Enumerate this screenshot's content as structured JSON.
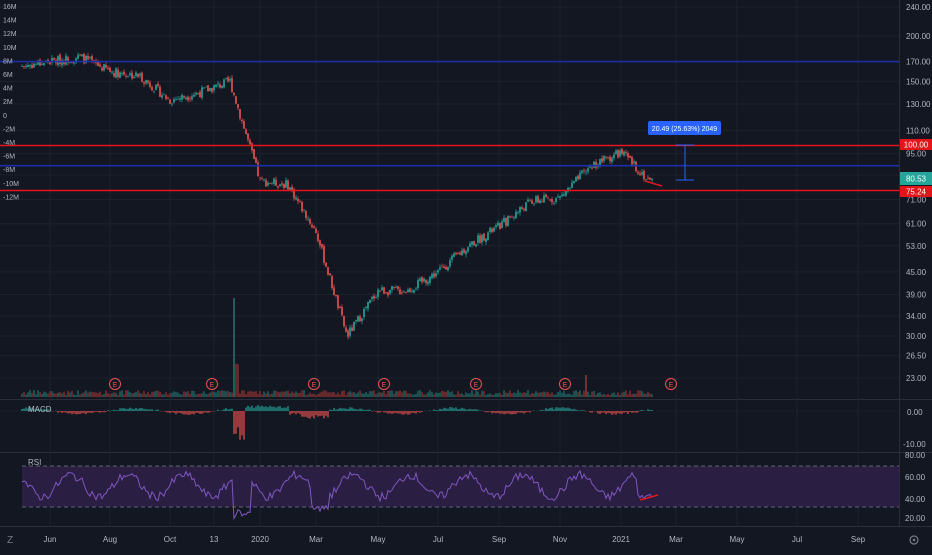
{
  "colors": {
    "background": "#131722",
    "grid": "#1e222d",
    "text": "#b2b5be",
    "up": "#26a69a",
    "down": "#ef5350",
    "horizontal_blue": "#1c2fa8",
    "horizontal_red": "#e3151a",
    "macd_line": "#2962ff",
    "macd_signal": "#ff6d00",
    "rsi_line": "#7e57c2",
    "rsi_band": "#2a1e42",
    "price_label_green": "#26a69a",
    "price_label_red": "#e3151a",
    "measure_label": "#2962ff"
  },
  "left_axis": {
    "labels": [
      "16M",
      "14M",
      "12M",
      "10M",
      "8M",
      "6M",
      "4M",
      "2M",
      "0",
      "-2M",
      "-4M",
      "-6M",
      "-8M",
      "-10M",
      "-12M"
    ]
  },
  "price_axis": {
    "labels": [
      "240.00",
      "200.00",
      "170.00",
      "150.00",
      "130.00",
      "110.00",
      "95.00",
      "83.00",
      "71.00",
      "61.00",
      "53.00",
      "45.00",
      "39.00",
      "34.00",
      "30.00",
      "26.50",
      "23.00"
    ],
    "level_labels": [
      {
        "text": "100.00",
        "style": "red"
      },
      {
        "text": "80.53",
        "style": "green"
      },
      {
        "text": "75.24",
        "style": "red"
      }
    ]
  },
  "macd_pane": {
    "title": "MACD",
    "labels": [
      "0.00",
      "-10.00"
    ]
  },
  "rsi_pane": {
    "title": "RSI",
    "labels": [
      "80.00",
      "60.00",
      "40.00",
      "20.00"
    ]
  },
  "time_axis": {
    "labels": [
      "Jun",
      "Aug",
      "Oct",
      "13",
      "2020",
      "Mar",
      "May",
      "Jul",
      "Sep",
      "Nov",
      "2021",
      "Mar",
      "May",
      "Jul",
      "Sep"
    ]
  },
  "earnings_marker": "E",
  "measure_tool": {
    "label": "20.49 (25.63%) 2049"
  },
  "toolbar": {
    "logo": "Z"
  },
  "chart_data": {
    "type": "candlestick",
    "price_axis_scale": "log",
    "price_axis_range": [
      23,
      240
    ],
    "horizontal_levels": [
      {
        "price": 170,
        "color": "blue"
      },
      {
        "price": 100,
        "color": "red"
      },
      {
        "price": 88,
        "color": "blue"
      },
      {
        "price": 75.24,
        "color": "red"
      }
    ],
    "measured_move": {
      "from": 80,
      "to": 100.49,
      "change": 20.49,
      "percent": 25.63
    },
    "approx_trend": [
      {
        "date": "2019-05",
        "price": 165
      },
      {
        "date": "2019-07",
        "price": 175
      },
      {
        "date": "2019-08",
        "price": 160
      },
      {
        "date": "2019-09",
        "price": 155
      },
      {
        "date": "2019-10",
        "price": 133
      },
      {
        "date": "2019-11",
        "price": 140
      },
      {
        "date": "2019-12",
        "price": 150
      },
      {
        "date": "2020-01",
        "price": 80
      },
      {
        "date": "2020-02",
        "price": 78
      },
      {
        "date": "2020-03",
        "price": 58
      },
      {
        "date": "2020-04",
        "price": 30
      },
      {
        "date": "2020-05",
        "price": 40
      },
      {
        "date": "2020-06",
        "price": 40
      },
      {
        "date": "2020-07",
        "price": 45
      },
      {
        "date": "2020-08",
        "price": 53
      },
      {
        "date": "2020-09",
        "price": 60
      },
      {
        "date": "2020-10",
        "price": 70
      },
      {
        "date": "2020-11",
        "price": 72
      },
      {
        "date": "2020-12",
        "price": 88
      },
      {
        "date": "2021-01",
        "price": 96
      },
      {
        "date": "2021-02",
        "price": 80
      }
    ],
    "rsi_levels": [
      70,
      30
    ]
  }
}
